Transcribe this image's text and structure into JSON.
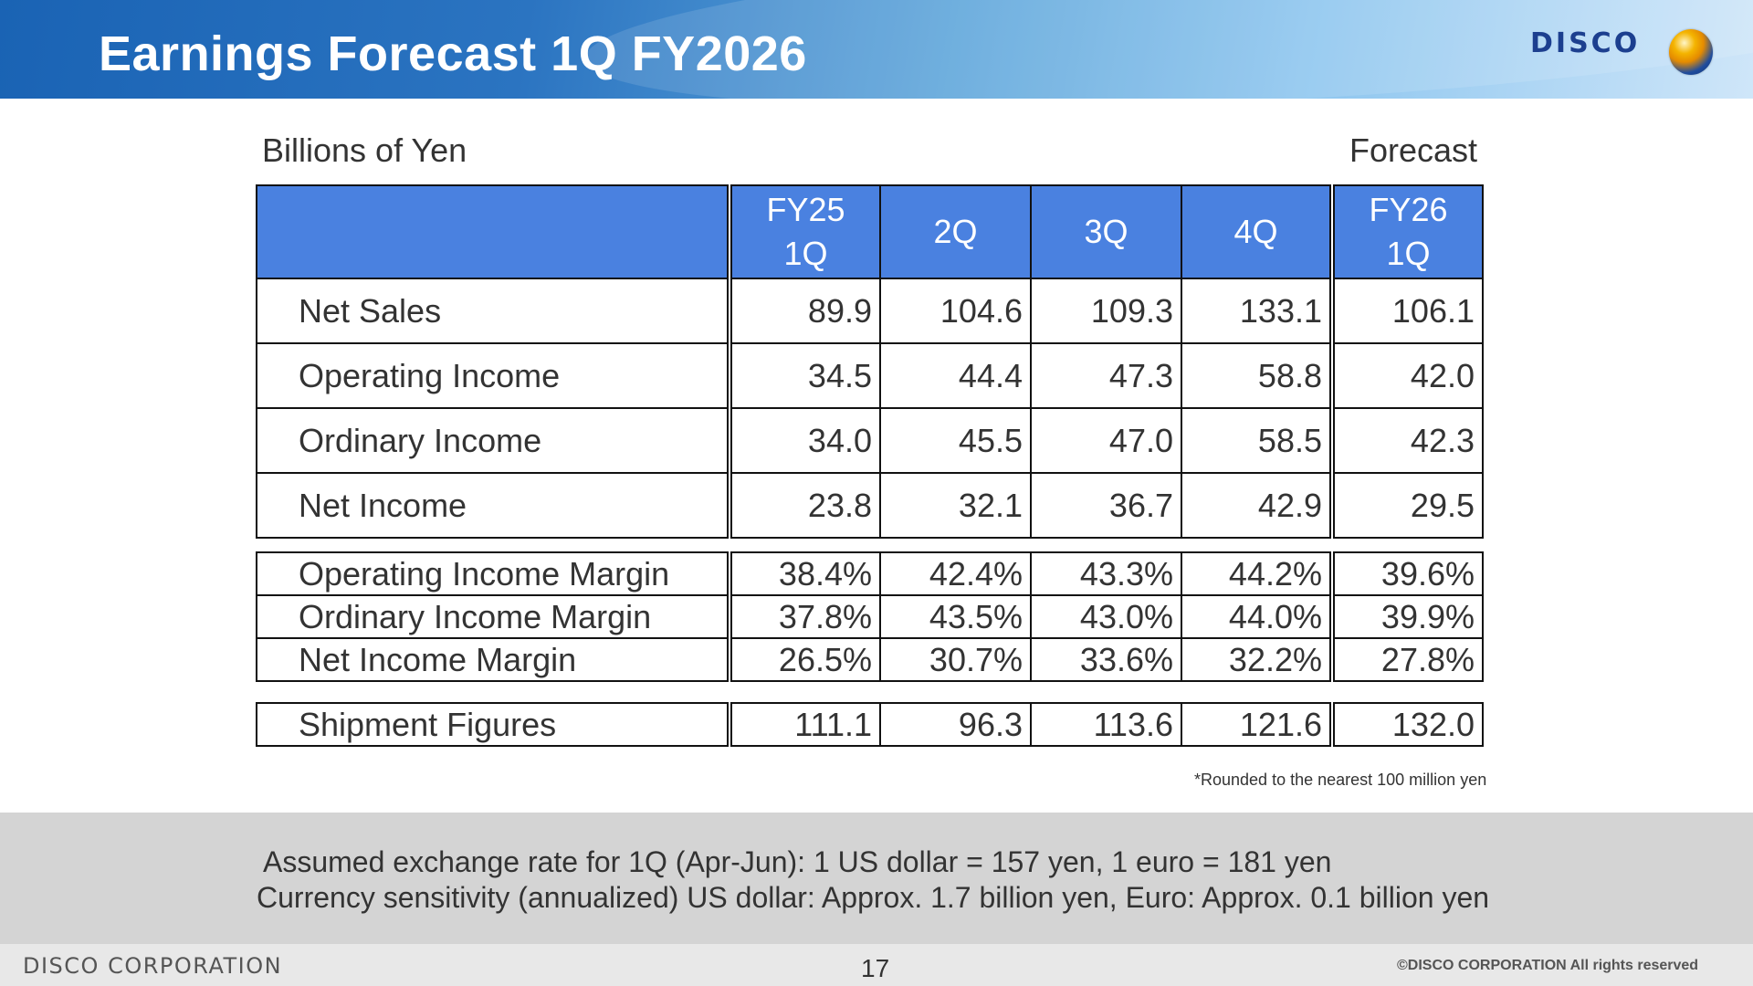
{
  "header": {
    "title": "Earnings Forecast 1Q FY2026",
    "logo_text": "DISCO"
  },
  "unit_label": "Billions of Yen",
  "forecast_label": "Forecast",
  "table": {
    "columns": [
      "FY25\n1Q",
      "2Q",
      "3Q",
      "4Q",
      "FY26\n1Q"
    ],
    "main_rows": [
      {
        "label": "Net Sales",
        "values": [
          "89.9",
          "104.6",
          "109.3",
          "133.1",
          "106.1"
        ]
      },
      {
        "label": "Operating Income",
        "values": [
          "34.5",
          "44.4",
          "47.3",
          "58.8",
          "42.0"
        ]
      },
      {
        "label": "Ordinary Income",
        "values": [
          "34.0",
          "45.5",
          "47.0",
          "58.5",
          "42.3"
        ]
      },
      {
        "label": "Net Income",
        "values": [
          "23.8",
          "32.1",
          "36.7",
          "42.9",
          "29.5"
        ]
      }
    ],
    "margin_rows": [
      {
        "label": "Operating Income Margin",
        "values": [
          "38.4%",
          "42.4%",
          "43.3%",
          "44.2%",
          "39.6%"
        ]
      },
      {
        "label": "Ordinary Income Margin",
        "values": [
          "37.8%",
          "43.5%",
          "43.0%",
          "44.0%",
          "39.9%"
        ]
      },
      {
        "label": "Net Income Margin",
        "values": [
          "26.5%",
          "30.7%",
          "33.6%",
          "32.2%",
          "27.8%"
        ]
      }
    ],
    "shipment_row": {
      "label": "Shipment Figures",
      "values": [
        "111.1",
        "96.3",
        "113.6",
        "121.6",
        "132.0"
      ]
    }
  },
  "note": "*Rounded to the nearest 100 million yen",
  "info": {
    "line1": "Assumed exchange rate for 1Q (Apr-Jun): 1 US dollar = 157 yen, 1 euro = 181 yen",
    "line2": "Currency sensitivity (annualized) US dollar: Approx. 1.7 billion yen, Euro: Approx. 0.1 billion yen"
  },
  "footer": {
    "corp": "DISCO CORPORATION",
    "page": "17",
    "copyright": "©DISCO CORPORATION   All rights reserved"
  },
  "colors": {
    "header_blue": "#1a63b4",
    "table_header": "#4a81e0",
    "info_band": "#d4d4d4",
    "logo_navy": "#1c3f8f"
  }
}
